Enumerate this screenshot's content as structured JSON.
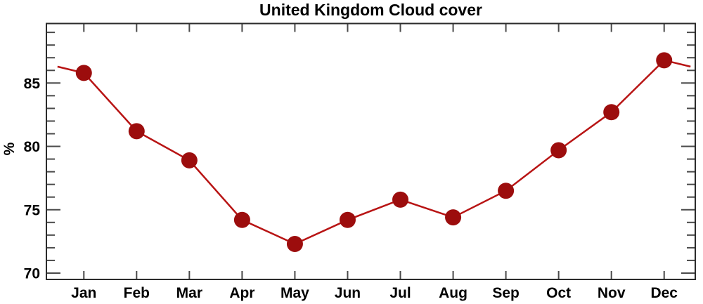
{
  "chart_data": {
    "type": "line",
    "title": "United Kingdom Cloud cover",
    "xlabel": "",
    "ylabel": "%",
    "categories": [
      "Jan",
      "Feb",
      "Mar",
      "Apr",
      "May",
      "Jun",
      "Jul",
      "Aug",
      "Sep",
      "Oct",
      "Nov",
      "Dec"
    ],
    "values": [
      85.8,
      81.2,
      78.9,
      74.2,
      72.3,
      74.2,
      75.8,
      74.4,
      76.5,
      79.7,
      82.7,
      86.8
    ],
    "periodic_edge_points": [
      {
        "month_position": 0.5,
        "value": 86.3
      },
      {
        "month_position": 12.5,
        "value": 86.3
      }
    ],
    "x_axis": {
      "tick_months": [
        1,
        2,
        3,
        4,
        5,
        6,
        7,
        8,
        9,
        10,
        11,
        12
      ],
      "range": [
        0.29,
        12.59
      ],
      "grid": false
    },
    "y_axis": {
      "labeled_ticks": [
        70,
        75,
        80,
        85
      ],
      "minor_tick_interval": 1,
      "range": [
        69.5,
        89.7
      ],
      "grid": false
    },
    "legend": "none",
    "marker_style": "filled-circle",
    "colors": {
      "line": "#b81414",
      "marker": "#9c0d0d",
      "axis": "#2b2b2b",
      "tick": "#4a4a4a",
      "text": "#000000",
      "background": "#ffffff"
    }
  }
}
